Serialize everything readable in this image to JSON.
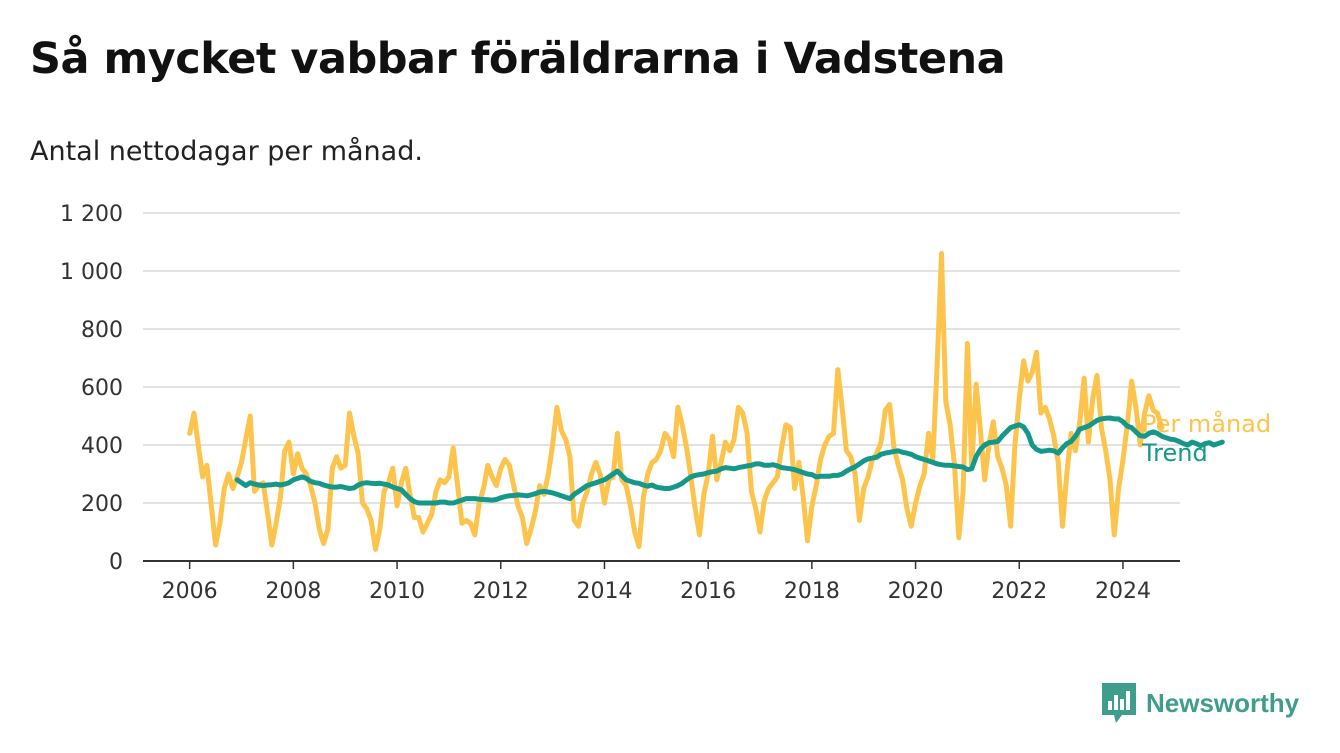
{
  "header": {
    "title": "Så mycket vabbar föräldrarna i Vadstena",
    "subtitle": "Antal nettodagar per månad."
  },
  "brand": {
    "name": "Newsworthy",
    "icon": "newsworthy-logo-icon",
    "color": "#3f9d8b"
  },
  "chart_data": {
    "type": "line",
    "x_axis": {
      "ticks": [
        "2006",
        "2008",
        "2010",
        "2012",
        "2014",
        "2016",
        "2018",
        "2020",
        "2022",
        "2024"
      ],
      "range": [
        2005.1,
        2025.1
      ]
    },
    "y_axis": {
      "ticks": [
        0,
        200,
        400,
        600,
        800,
        1000,
        1200
      ],
      "tick_labels": [
        "0",
        "200",
        "400",
        "600",
        "800",
        "1 000",
        "1 200"
      ],
      "range": [
        0,
        1200
      ]
    },
    "grid": true,
    "legend": "inline-right",
    "series": [
      {
        "name": "Per månad",
        "color": "#fcc44d",
        "start": "2006-01",
        "frequency": "monthly",
        "values": [
          440,
          510,
          400,
          290,
          330,
          190,
          55,
          130,
          250,
          300,
          250,
          290,
          340,
          420,
          500,
          240,
          260,
          270,
          170,
          55,
          130,
          220,
          380,
          410,
          300,
          370,
          320,
          300,
          260,
          200,
          110,
          60,
          110,
          320,
          360,
          320,
          330,
          510,
          430,
          370,
          200,
          180,
          140,
          40,
          110,
          240,
          270,
          320,
          190,
          270,
          320,
          230,
          150,
          150,
          100,
          130,
          160,
          240,
          280,
          270,
          290,
          390,
          260,
          130,
          140,
          130,
          90,
          200,
          250,
          330,
          290,
          260,
          320,
          350,
          330,
          260,
          190,
          150,
          60,
          110,
          170,
          260,
          230,
          300,
          400,
          530,
          450,
          420,
          360,
          140,
          120,
          200,
          240,
          300,
          340,
          300,
          200,
          280,
          290,
          440,
          280,
          260,
          190,
          100,
          50,
          220,
          300,
          340,
          350,
          380,
          440,
          420,
          360,
          530,
          470,
          390,
          290,
          180,
          90,
          230,
          300,
          430,
          280,
          340,
          410,
          380,
          420,
          530,
          510,
          440,
          240,
          180,
          100,
          210,
          250,
          270,
          290,
          390,
          470,
          460,
          250,
          340,
          220,
          70,
          190,
          260,
          350,
          400,
          430,
          440,
          660,
          530,
          380,
          360,
          300,
          140,
          250,
          290,
          350,
          370,
          410,
          520,
          540,
          390,
          330,
          280,
          180,
          120,
          200,
          260,
          300,
          440,
          350,
          680,
          1060,
          550,
          470,
          330,
          80,
          240,
          750,
          320,
          610,
          450,
          280,
          400,
          480,
          360,
          320,
          260,
          120,
          400,
          560,
          690,
          620,
          650,
          720,
          510,
          530,
          490,
          430,
          340,
          120,
          300,
          440,
          380,
          480,
          630,
          410,
          560,
          640,
          460,
          380,
          280,
          90,
          250,
          350,
          470,
          620,
          530,
          400,
          510,
          570,
          520,
          510,
          460
        ]
      },
      {
        "name": "Trend",
        "color": "#15988a",
        "start": "2006-12",
        "frequency": "monthly",
        "values": [
          280,
          270,
          260,
          270,
          265,
          262,
          260,
          262,
          263,
          265,
          262,
          265,
          270,
          280,
          285,
          290,
          285,
          275,
          270,
          268,
          262,
          258,
          255,
          255,
          257,
          253,
          250,
          252,
          262,
          268,
          270,
          268,
          267,
          268,
          265,
          262,
          255,
          250,
          245,
          230,
          215,
          205,
          200,
          200,
          200,
          200,
          200,
          203,
          203,
          200,
          200,
          205,
          210,
          215,
          215,
          215,
          213,
          212,
          211,
          210,
          212,
          218,
          222,
          225,
          226,
          228,
          227,
          225,
          228,
          232,
          238,
          240,
          238,
          235,
          230,
          225,
          220,
          215,
          230,
          240,
          250,
          260,
          265,
          270,
          275,
          280,
          290,
          300,
          310,
          295,
          280,
          275,
          270,
          268,
          262,
          258,
          262,
          255,
          252,
          250,
          250,
          255,
          260,
          268,
          280,
          290,
          295,
          298,
          300,
          305,
          308,
          310,
          318,
          322,
          320,
          318,
          322,
          325,
          328,
          330,
          335,
          335,
          330,
          330,
          332,
          328,
          322,
          320,
          318,
          315,
          310,
          305,
          300,
          298,
          290,
          292,
          292,
          292,
          295,
          295,
          300,
          310,
          318,
          325,
          335,
          345,
          352,
          355,
          358,
          368,
          372,
          375,
          378,
          380,
          375,
          372,
          368,
          360,
          355,
          350,
          345,
          340,
          335,
          332,
          330,
          330,
          328,
          326,
          324,
          315,
          318,
          360,
          385,
          400,
          408,
          410,
          412,
          430,
          445,
          460,
          465,
          470,
          462,
          440,
          400,
          385,
          378,
          380,
          382,
          380,
          372,
          390,
          405,
          412,
          430,
          455,
          460,
          465,
          475,
          485,
          490,
          492,
          493,
          490,
          490,
          480,
          465,
          460,
          445,
          432,
          430,
          440,
          445,
          440,
          430,
          425,
          420,
          418,
          412,
          405,
          400,
          410,
          405,
          398,
          405,
          408,
          400,
          405,
          410
        ]
      }
    ]
  }
}
